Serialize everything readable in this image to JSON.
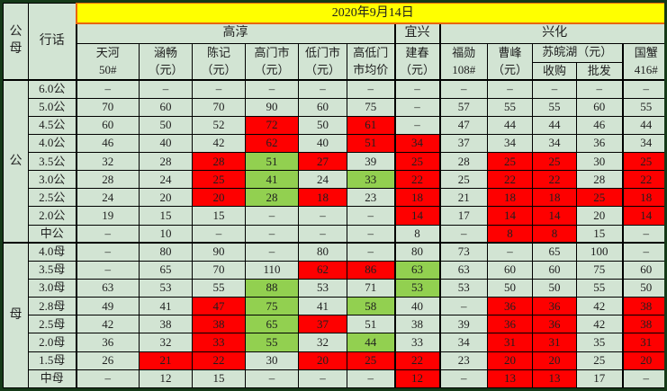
{
  "banner": {
    "date": "2020年9月14日"
  },
  "corner": {
    "gender": "公母",
    "term": "行话"
  },
  "regions": [
    {
      "label": "高淳"
    },
    {
      "label": "宜兴"
    },
    {
      "label": "兴化"
    }
  ],
  "columns": [
    {
      "line1": "天河",
      "line2": "50#"
    },
    {
      "line1": "涵畅",
      "line2": "（元）"
    },
    {
      "line1": "陈记",
      "line2": "（元）"
    },
    {
      "line1": "高门市",
      "line2": "（元）"
    },
    {
      "line1": "低门市",
      "line2": "（元）"
    },
    {
      "line1": "高低门",
      "line2": "市均价"
    },
    {
      "line1": "建春",
      "line2": "（元）"
    },
    {
      "line1": "福勋",
      "line2": "108#"
    },
    {
      "line1": "曹峰",
      "line2": "（元）"
    },
    {
      "line1": "国蟹",
      "line2": "416#"
    }
  ],
  "su_group": {
    "label": "苏皖湖（元）",
    "sub1": "收购",
    "sub2": "批发"
  },
  "colors": {
    "background": "#d2e4d3",
    "banner_yellow": "#ffff00",
    "banner_border_orange": "#e8660d",
    "highlight_red": "#fe0000",
    "highlight_green": "#92d050",
    "grid": "#000000"
  },
  "groups": [
    {
      "label": "公",
      "rows": [
        {
          "label": "6.0公",
          "cells": [
            [
              "–"
            ],
            [
              "–"
            ],
            [
              "–"
            ],
            [
              "–"
            ],
            [
              "–"
            ],
            [
              "–"
            ],
            [
              "–"
            ],
            [
              "–"
            ],
            [
              "–"
            ],
            [
              "–"
            ],
            [
              "–"
            ],
            [
              "–"
            ]
          ]
        },
        {
          "label": "5.0公",
          "cells": [
            [
              "70"
            ],
            [
              "60"
            ],
            [
              "70"
            ],
            [
              "90"
            ],
            [
              "60"
            ],
            [
              "75"
            ],
            [
              "–"
            ],
            [
              "57"
            ],
            [
              "55"
            ],
            [
              "55"
            ],
            [
              "60"
            ],
            [
              "55"
            ]
          ]
        },
        {
          "label": "4.5公",
          "cells": [
            [
              "60"
            ],
            [
              "50"
            ],
            [
              "52"
            ],
            [
              "72",
              "r"
            ],
            [
              "50"
            ],
            [
              "61",
              "r"
            ],
            [
              "–"
            ],
            [
              "47"
            ],
            [
              "44"
            ],
            [
              "44"
            ],
            [
              "46"
            ],
            [
              "44"
            ]
          ]
        },
        {
          "label": "4.0公",
          "cells": [
            [
              "46"
            ],
            [
              "40"
            ],
            [
              "42"
            ],
            [
              "62",
              "r"
            ],
            [
              "40"
            ],
            [
              "51",
              "r"
            ],
            [
              "34",
              "r"
            ],
            [
              "37"
            ],
            [
              "34"
            ],
            [
              "34"
            ],
            [
              "36"
            ],
            [
              "34"
            ]
          ]
        },
        {
          "label": "3.5公",
          "cells": [
            [
              "32"
            ],
            [
              "28"
            ],
            [
              "28",
              "r"
            ],
            [
              "51",
              "g"
            ],
            [
              "27",
              "r"
            ],
            [
              "39"
            ],
            [
              "25",
              "r"
            ],
            [
              "28"
            ],
            [
              "25",
              "r"
            ],
            [
              "25",
              "r"
            ],
            [
              "30"
            ],
            [
              "25",
              "r"
            ]
          ]
        },
        {
          "label": "3.0公",
          "cells": [
            [
              "28"
            ],
            [
              "24"
            ],
            [
              "25",
              "r"
            ],
            [
              "41",
              "g"
            ],
            [
              "24"
            ],
            [
              "33",
              "g"
            ],
            [
              "22",
              "r"
            ],
            [
              "25"
            ],
            [
              "22",
              "r"
            ],
            [
              "22",
              "r"
            ],
            [
              "28"
            ],
            [
              "22",
              "r"
            ]
          ]
        },
        {
          "label": "2.5公",
          "cells": [
            [
              "24"
            ],
            [
              "20"
            ],
            [
              "20",
              "r"
            ],
            [
              "28",
              "g"
            ],
            [
              "18",
              "r"
            ],
            [
              "23"
            ],
            [
              "18",
              "r"
            ],
            [
              "21"
            ],
            [
              "18",
              "r"
            ],
            [
              "18",
              "r"
            ],
            [
              "25",
              "r"
            ],
            [
              "18",
              "r"
            ]
          ]
        },
        {
          "label": "2.0公",
          "cells": [
            [
              "19"
            ],
            [
              "15"
            ],
            [
              "15"
            ],
            [
              "–"
            ],
            [
              "–"
            ],
            [
              "–"
            ],
            [
              "14",
              "r"
            ],
            [
              "17"
            ],
            [
              "14",
              "r"
            ],
            [
              "14",
              "r"
            ],
            [
              "20"
            ],
            [
              "14",
              "r"
            ]
          ]
        },
        {
          "label": "中公",
          "cells": [
            [
              "–"
            ],
            [
              "10"
            ],
            [
              "–"
            ],
            [
              "–"
            ],
            [
              "–"
            ],
            [
              "–"
            ],
            [
              "8"
            ],
            [
              "–"
            ],
            [
              "8",
              "r"
            ],
            [
              "8",
              "r"
            ],
            [
              "15"
            ],
            [
              "–"
            ]
          ]
        }
      ]
    },
    {
      "label": "母",
      "rows": [
        {
          "label": "4.0母",
          "cells": [
            [
              "–"
            ],
            [
              "80"
            ],
            [
              "90"
            ],
            [
              "–"
            ],
            [
              "80"
            ],
            [
              "–"
            ],
            [
              "80"
            ],
            [
              "73"
            ],
            [
              "–"
            ],
            [
              "65"
            ],
            [
              "100"
            ],
            [
              "–"
            ]
          ]
        },
        {
          "label": "3.5母",
          "cells": [
            [
              "–"
            ],
            [
              "65"
            ],
            [
              "70"
            ],
            [
              "110"
            ],
            [
              "62",
              "r"
            ],
            [
              "86",
              "r"
            ],
            [
              "63",
              "g"
            ],
            [
              "63"
            ],
            [
              "60"
            ],
            [
              "60"
            ],
            [
              "75"
            ],
            [
              "60"
            ]
          ]
        },
        {
          "label": "3.0母",
          "cells": [
            [
              "63"
            ],
            [
              "53"
            ],
            [
              "55"
            ],
            [
              "88",
              "g"
            ],
            [
              "53"
            ],
            [
              "71"
            ],
            [
              "53",
              "g"
            ],
            [
              "53"
            ],
            [
              "50"
            ],
            [
              "50"
            ],
            [
              "55"
            ],
            [
              "50"
            ]
          ]
        },
        {
          "label": "2.8母",
          "cells": [
            [
              "49"
            ],
            [
              "41"
            ],
            [
              "47",
              "r"
            ],
            [
              "75",
              "g"
            ],
            [
              "41"
            ],
            [
              "58",
              "g"
            ],
            [
              "40"
            ],
            [
              "–"
            ],
            [
              "36",
              "r"
            ],
            [
              "36",
              "r"
            ],
            [
              "42"
            ],
            [
              "38",
              "r"
            ]
          ]
        },
        {
          "label": "2.5母",
          "cells": [
            [
              "42"
            ],
            [
              "38"
            ],
            [
              "38",
              "r"
            ],
            [
              "65",
              "g"
            ],
            [
              "37",
              "r"
            ],
            [
              "51"
            ],
            [
              "38"
            ],
            [
              "39"
            ],
            [
              "36",
              "r"
            ],
            [
              "36",
              "r"
            ],
            [
              "42"
            ],
            [
              "38",
              "r"
            ]
          ]
        },
        {
          "label": "2.0母",
          "cells": [
            [
              "36"
            ],
            [
              "32"
            ],
            [
              "33",
              "r"
            ],
            [
              "55",
              "g"
            ],
            [
              "32"
            ],
            [
              "44",
              "g"
            ],
            [
              "33"
            ],
            [
              "34"
            ],
            [
              "31",
              "r"
            ],
            [
              "31",
              "r"
            ],
            [
              "35"
            ],
            [
              "31",
              "r"
            ]
          ]
        },
        {
          "label": "1.5母",
          "cells": [
            [
              "26"
            ],
            [
              "21",
              "r"
            ],
            [
              "22",
              "r"
            ],
            [
              "30"
            ],
            [
              "20",
              "r"
            ],
            [
              "25",
              "r"
            ],
            [
              "22",
              "r"
            ],
            [
              "23"
            ],
            [
              "20",
              "r"
            ],
            [
              "20",
              "r"
            ],
            [
              "25"
            ],
            [
              "20",
              "r"
            ]
          ]
        },
        {
          "label": "中母",
          "cells": [
            [
              "–"
            ],
            [
              "12"
            ],
            [
              "15"
            ],
            [
              "–"
            ],
            [
              "–"
            ],
            [
              "–"
            ],
            [
              "12",
              "r"
            ],
            [
              "–"
            ],
            [
              "13",
              "r"
            ],
            [
              "13",
              "r"
            ],
            [
              "17"
            ],
            [
              "–"
            ]
          ]
        }
      ]
    }
  ]
}
